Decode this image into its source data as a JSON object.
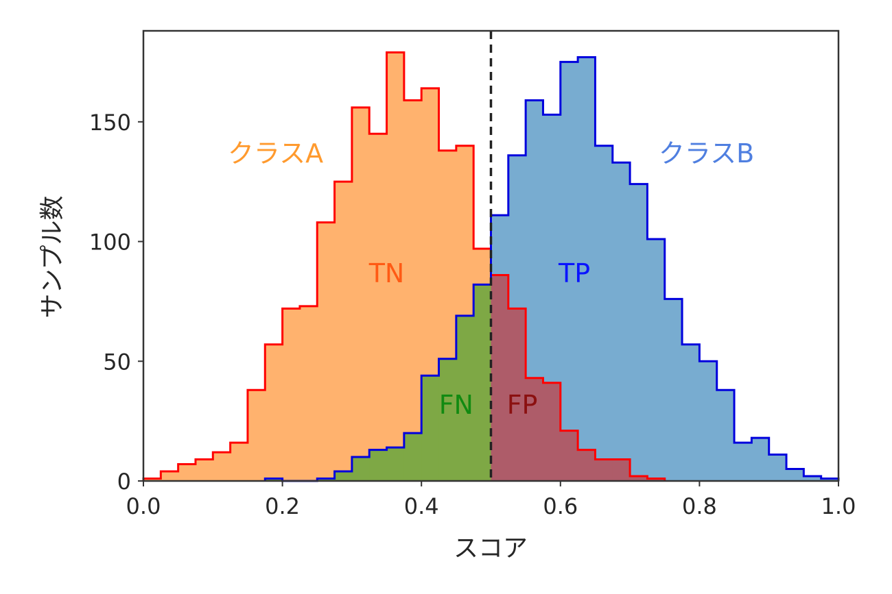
{
  "chart_data": {
    "type": "histogram",
    "title": "",
    "xlabel": "スコア",
    "ylabel": "サンプル数",
    "xlim": [
      0.0,
      1.0
    ],
    "ylim": [
      0,
      188
    ],
    "grid": false,
    "legend": null,
    "bin_width": 0.025,
    "bin_edges_start": 0.0,
    "x_ticks": [
      0.0,
      0.2,
      0.4,
      0.6,
      0.8,
      1.0
    ],
    "x_tick_labels": [
      "0.0",
      "0.2",
      "0.4",
      "0.6",
      "0.8",
      "1.0"
    ],
    "y_ticks": [
      0,
      50,
      100,
      150
    ],
    "y_tick_labels": [
      "0",
      "50",
      "100",
      "150"
    ],
    "threshold": 0.5,
    "series": [
      {
        "name": "クラスA",
        "edge_color": "#ff0000",
        "fill_left_color": "#ffb26e",
        "fill_right_color": "#ae5c69",
        "values": [
          1,
          4,
          7,
          9,
          12,
          16,
          38,
          57,
          72,
          73,
          108,
          125,
          156,
          145,
          179,
          159,
          164,
          138,
          140,
          97,
          86,
          72,
          43,
          41,
          21,
          13,
          9,
          9,
          2,
          1,
          0,
          0,
          0,
          0,
          0,
          0,
          0,
          0,
          0,
          0
        ]
      },
      {
        "name": "クラスB",
        "edge_color": "#0000dd",
        "fill_left_color": "#7ea845",
        "fill_right_color": "#78acd0",
        "values": [
          0,
          0,
          0,
          0,
          0,
          0,
          0,
          1,
          0,
          0,
          1,
          4,
          10,
          13,
          14,
          20,
          44,
          51,
          69,
          82,
          111,
          136,
          159,
          153,
          175,
          177,
          140,
          133,
          124,
          101,
          76,
          57,
          50,
          38,
          16,
          18,
          11,
          5,
          2,
          1
        ]
      }
    ],
    "annotations": [
      {
        "id": "class-a",
        "text": "クラスA",
        "x": 0.19,
        "y": 133,
        "color": "#ff9a2e"
      },
      {
        "id": "class-b",
        "text": "クラスB",
        "x": 0.81,
        "y": 133,
        "color": "#4f7fe0"
      },
      {
        "id": "tn",
        "text": "TN",
        "x": 0.35,
        "y": 83,
        "color": "#ff5a14"
      },
      {
        "id": "tp",
        "text": "TP",
        "x": 0.62,
        "y": 83,
        "color": "#0a14ff"
      },
      {
        "id": "fn",
        "text": "FN",
        "x": 0.45,
        "y": 28,
        "color": "#118a11"
      },
      {
        "id": "fp",
        "text": "FP",
        "x": 0.545,
        "y": 28,
        "color": "#8b1010"
      }
    ]
  }
}
